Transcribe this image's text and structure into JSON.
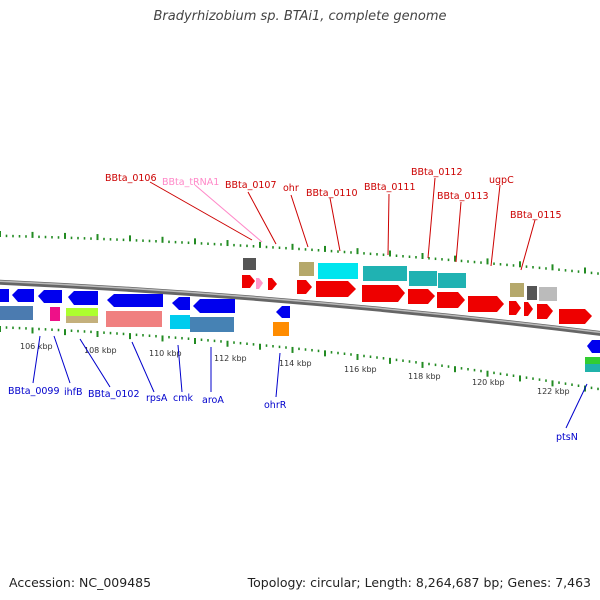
{
  "title": "Bradyrhizobium sp. BTAi1, complete genome",
  "footer": {
    "accession": "Accession: NC_009485",
    "summary": "Topology: circular; Length: 8,264,687 bp; Genes: 7,463"
  },
  "colors": {
    "red_label": "#cc0000",
    "pink_label": "#ff88c8",
    "blue_label": "#0000cc",
    "backbone": "#888888",
    "tick": "#228B22"
  },
  "scale_labels": [
    "106 kbp",
    "108 kbp",
    "110 kbp",
    "112 kbp",
    "114 kbp",
    "116 kbp",
    "118 kbp",
    "120 kbp",
    "122 kbp"
  ],
  "top_labels": [
    {
      "text": "BBta_0106",
      "color": "red"
    },
    {
      "text": "BBta_tRNA1",
      "color": "pink"
    },
    {
      "text": "BBta_0107",
      "color": "red"
    },
    {
      "text": "ohr",
      "color": "red"
    },
    {
      "text": "BBta_0110",
      "color": "red"
    },
    {
      "text": "BBta_0111",
      "color": "red"
    },
    {
      "text": "BBta_0112",
      "color": "red"
    },
    {
      "text": "BBta_0113",
      "color": "red"
    },
    {
      "text": "ugpC",
      "color": "red"
    },
    {
      "text": "BBta_0115",
      "color": "red"
    }
  ],
  "bottom_labels": [
    {
      "text": "BBta_0099"
    },
    {
      "text": "ihfB"
    },
    {
      "text": "BBta_0102"
    },
    {
      "text": "rpsA"
    },
    {
      "text": "cmk"
    },
    {
      "text": "aroA"
    },
    {
      "text": "ohrR"
    },
    {
      "text": "ptsN"
    }
  ]
}
